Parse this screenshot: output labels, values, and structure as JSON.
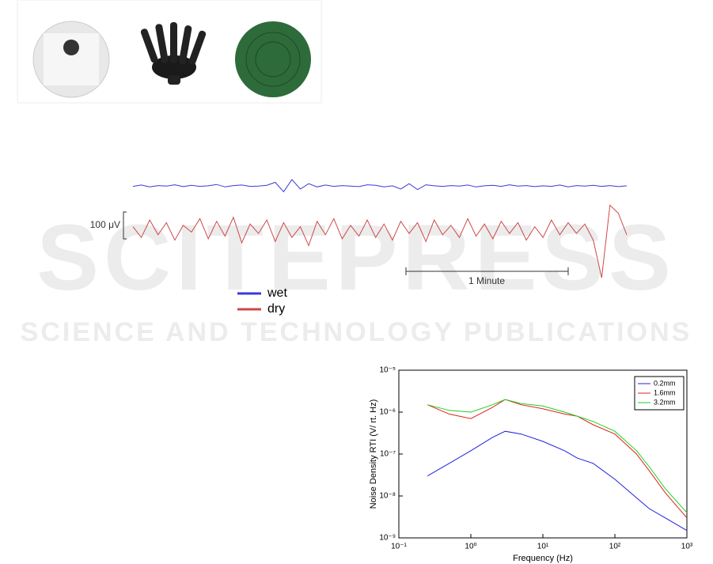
{
  "watermark": {
    "title": "SCITEPRESS",
    "subtitle": "SCIENCE AND TECHNOLOGY PUBLICATIONS"
  },
  "chart_data": [
    {
      "type": "line",
      "scale_bar": {
        "value": 100,
        "label": "100 μV"
      },
      "time_bar": "1 Minute",
      "ylim": [
        -200,
        250
      ],
      "series": [
        {
          "name": "wet",
          "color": "#3a3ad6",
          "values": [
            160,
            165,
            158,
            163,
            161,
            166,
            159,
            164,
            160,
            162,
            167,
            158,
            163,
            165,
            160,
            161,
            164,
            175,
            140,
            185,
            150,
            170,
            158,
            165,
            160,
            163,
            161,
            159,
            166,
            164,
            158,
            162,
            150,
            170,
            148,
            166,
            162,
            160,
            163,
            161,
            165,
            158,
            162,
            164,
            160,
            166,
            161,
            163,
            159,
            162,
            160,
            165,
            158,
            163,
            161,
            164,
            160,
            163,
            159,
            162
          ]
        },
        {
          "name": "dry",
          "color": "#cc4a4a",
          "values": [
            10,
            -30,
            35,
            -20,
            25,
            -40,
            15,
            -10,
            40,
            -35,
            30,
            -25,
            45,
            -50,
            20,
            -15,
            35,
            -45,
            25,
            -30,
            10,
            -60,
            30,
            -20,
            40,
            -35,
            15,
            -25,
            35,
            -30,
            20,
            -40,
            30,
            -15,
            25,
            -45,
            35,
            -20,
            15,
            -30,
            40,
            -25,
            20,
            -35,
            30,
            -15,
            25,
            -40,
            10,
            -30,
            35,
            -20,
            25,
            -15,
            20,
            -40,
            -180,
            90,
            60,
            -20
          ]
        }
      ]
    },
    {
      "type": "line",
      "xlabel": "Frequency (Hz)",
      "ylabel": "Noise Density RTI (V/ rt. Hz)",
      "log_x": true,
      "log_y": true,
      "xlim": [
        0.1,
        1000
      ],
      "ylim": [
        1e-09,
        1e-05
      ],
      "xticks": [
        {
          "value": 0.1,
          "label": "10⁻¹"
        },
        {
          "value": 1,
          "label": "10⁰"
        },
        {
          "value": 10,
          "label": "10¹"
        },
        {
          "value": 100,
          "label": "10²"
        },
        {
          "value": 1000,
          "label": "10³"
        }
      ],
      "yticks": [
        {
          "value": 1e-09,
          "label": "10⁻⁹"
        },
        {
          "value": 1e-08,
          "label": "10⁻⁸"
        },
        {
          "value": 1e-07,
          "label": "10⁻⁷"
        },
        {
          "value": 1e-06,
          "label": "10⁻⁶"
        },
        {
          "value": 1e-05,
          "label": "10⁻⁵"
        }
      ],
      "legend": "top-right",
      "x": [
        0.25,
        0.5,
        1,
        2,
        3,
        5,
        10,
        20,
        30,
        50,
        100,
        200,
        300,
        500,
        1000
      ],
      "series": [
        {
          "name": "0.2mm",
          "color": "#2020e0",
          "values": [
            3e-08,
            6e-08,
            1.2e-07,
            2.5e-07,
            3.5e-07,
            3e-07,
            2e-07,
            1.2e-07,
            8e-08,
            6e-08,
            2.5e-08,
            9e-09,
            5e-09,
            3e-09,
            1.5e-09
          ]
        },
        {
          "name": "1.6mm",
          "color": "#e02020",
          "values": [
            1.5e-06,
            9e-07,
            7e-07,
            1.3e-06,
            2e-06,
            1.5e-06,
            1.2e-06,
            9e-07,
            8e-07,
            5e-07,
            3e-07,
            1e-07,
            4e-08,
            1.2e-08,
            3e-09
          ]
        },
        {
          "name": "3.2mm",
          "color": "#20d020",
          "values": [
            1.5e-06,
            1.1e-06,
            1e-06,
            1.5e-06,
            2e-06,
            1.6e-06,
            1.4e-06,
            1e-06,
            8e-07,
            6e-07,
            3.5e-07,
            1.2e-07,
            5e-08,
            1.5e-08,
            4e-09
          ]
        }
      ]
    }
  ]
}
